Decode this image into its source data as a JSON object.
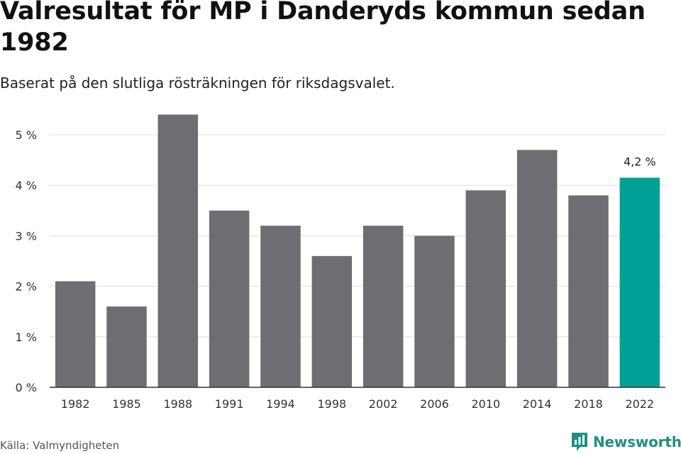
{
  "title": "Valresultat för MP i Danderyds kommun sedan 1982",
  "subtitle": "Baserat på den slutliga rösträkningen för riksdagsvalet.",
  "source": "Källa: Valmyndigheten",
  "brand": {
    "name": "Newsworthy",
    "icon": "bar-chart-logo-icon"
  },
  "colors": {
    "bar": "#6e6d72",
    "highlight": "#00a096",
    "grid": "#dddddd",
    "axis": "#333333",
    "brand": "#1f8f84"
  },
  "chart_data": {
    "type": "bar",
    "categories": [
      "1982",
      "1985",
      "1988",
      "1991",
      "1994",
      "1998",
      "2002",
      "2006",
      "2010",
      "2014",
      "2018",
      "2022"
    ],
    "values": [
      2.1,
      1.6,
      5.4,
      3.5,
      3.2,
      2.6,
      3.2,
      3.0,
      3.9,
      4.7,
      3.8,
      4.15
    ],
    "unit": "%",
    "yticks": [
      "0 %",
      "1 %",
      "2 %",
      "3 %",
      "4 %",
      "5 %"
    ],
    "ylim": [
      0,
      5.5
    ],
    "highlight_index": 11,
    "data_labels": [
      {
        "category": "2022",
        "text": "4,2 %"
      }
    ],
    "title": "Valresultat för MP i Danderyds kommun sedan 1982",
    "xlabel": "",
    "ylabel": "",
    "grid": true
  }
}
